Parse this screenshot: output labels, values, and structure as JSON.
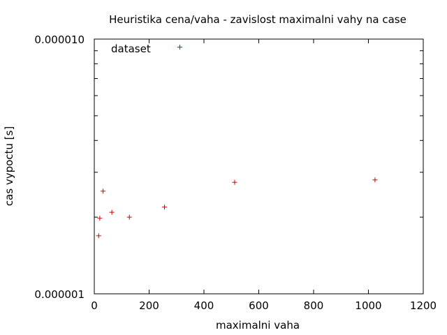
{
  "chart_data": {
    "type": "scatter",
    "title": "Heuristika cena/vaha - zavislost maximalni vahy na case",
    "xlabel": "maximalni vaha",
    "ylabel": "cas vypoctu [s]",
    "xlim": [
      0,
      1200
    ],
    "ylim": [
      1e-06,
      1e-05
    ],
    "y_scale": "log",
    "x_ticks": [
      "0",
      "200",
      "400",
      "600",
      "800",
      "1000",
      "1200"
    ],
    "x_tick_values": [
      0,
      200,
      400,
      600,
      800,
      1000,
      1200
    ],
    "y_ticks": [
      "0.000001",
      "0.000010"
    ],
    "y_tick_values": [
      1e-06,
      1e-05
    ],
    "grid": false,
    "legend_position": "top-left",
    "series": [
      {
        "name": "dataset",
        "color": "#cc0000",
        "marker": "+",
        "points": [
          {
            "x": 16,
            "y": 1.69e-06
          },
          {
            "x": 20,
            "y": 1.98e-06
          },
          {
            "x": 32,
            "y": 2.53e-06
          },
          {
            "x": 64,
            "y": 2.09e-06
          },
          {
            "x": 128,
            "y": 2e-06
          },
          {
            "x": 256,
            "y": 2.19e-06
          },
          {
            "x": 312,
            "y": 9.3e-06
          },
          {
            "x": 512,
            "y": 2.74e-06
          },
          {
            "x": 1024,
            "y": 2.8e-06
          }
        ]
      }
    ]
  }
}
